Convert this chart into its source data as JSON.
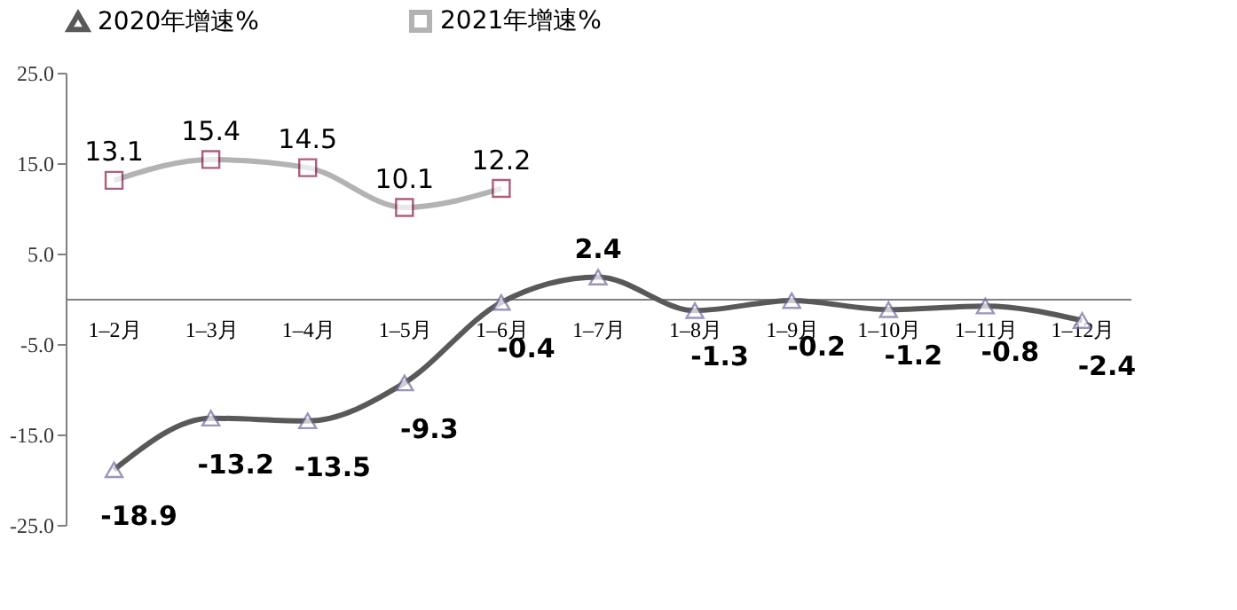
{
  "chart_data": {
    "type": "line",
    "categories": [
      "1–2月",
      "1–3月",
      "1–4月",
      "1–5月",
      "1–6月",
      "1–7月",
      "1–8月",
      "1–9月",
      "1–10月",
      "1–11月",
      "1–12月"
    ],
    "series": [
      {
        "name": "2020年增速%",
        "color": "#595959",
        "marker": "triangle",
        "values": [
          -18.9,
          -13.2,
          -13.5,
          -9.3,
          -0.4,
          2.4,
          -1.3,
          -0.2,
          -1.2,
          -0.8,
          -2.4
        ]
      },
      {
        "name": "2021年增速%",
        "color": "#b3b3b3",
        "marker": "square",
        "values": [
          13.1,
          15.4,
          14.5,
          10.1,
          12.2,
          null,
          null,
          null,
          null,
          null,
          null
        ]
      }
    ],
    "ylim": [
      -25,
      25
    ],
    "yticks": [
      {
        "value": 25,
        "label": "25.0"
      },
      {
        "value": 15,
        "label": "15.0"
      },
      {
        "value": 5,
        "label": "5.0"
      },
      {
        "value": -5,
        "label": "-5.0"
      },
      {
        "value": -15,
        "label": "-15.0"
      },
      {
        "value": -25,
        "label": "-25.0"
      }
    ],
    "data_labels": true,
    "grid": false,
    "legend": "top",
    "line_style": "solid"
  }
}
